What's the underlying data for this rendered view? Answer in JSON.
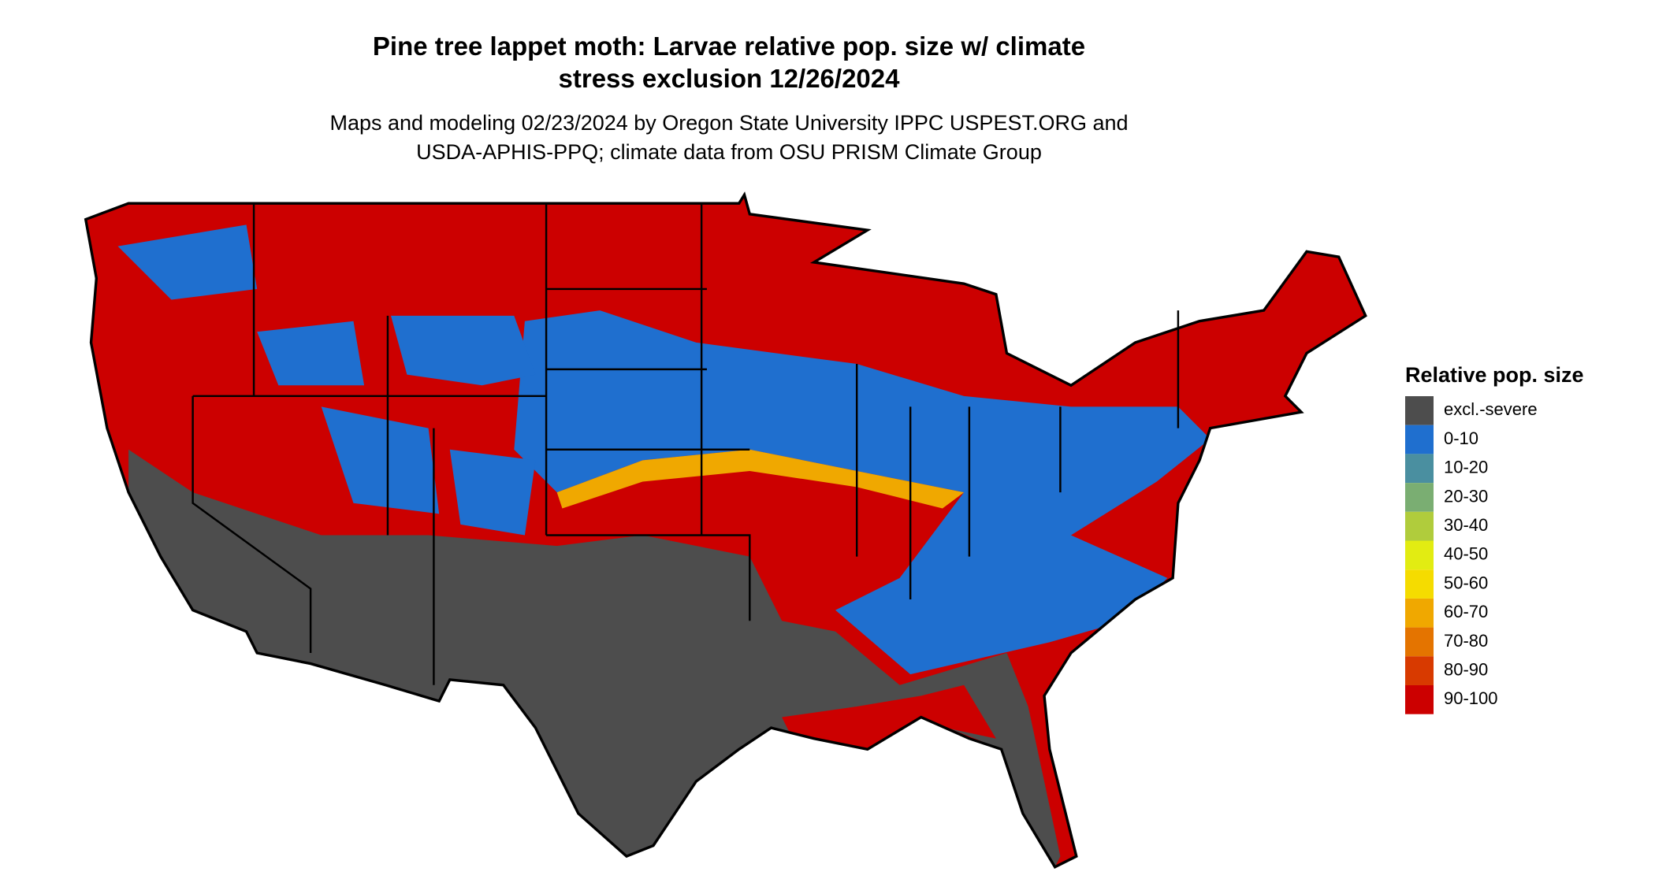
{
  "title": [
    "Pine tree lappet moth: Larvae relative pop. size w/ climate",
    "stress exclusion 12/26/2024"
  ],
  "subtitle": [
    "Maps and modeling 02/23/2024 by Oregon State University IPPC USPEST.ORG and",
    "USDA-APHIS-PPQ; climate data from OSU PRISM Climate Group"
  ],
  "legend": {
    "title": "Relative pop. size",
    "items": [
      {
        "label": "excl.-severe",
        "color": "#4d4d4d"
      },
      {
        "label": "0-10",
        "color": "#1f6fcf"
      },
      {
        "label": "10-20",
        "color": "#4a8fa0"
      },
      {
        "label": "20-30",
        "color": "#7aae72"
      },
      {
        "label": "30-40",
        "color": "#b0cc3c"
      },
      {
        "label": "40-50",
        "color": "#e2ec12"
      },
      {
        "label": "50-60",
        "color": "#f5dc00"
      },
      {
        "label": "60-70",
        "color": "#f0a800"
      },
      {
        "label": "70-80",
        "color": "#e47400"
      },
      {
        "label": "80-90",
        "color": "#d83a00"
      },
      {
        "label": "90-100",
        "color": "#cc0000"
      }
    ]
  }
}
